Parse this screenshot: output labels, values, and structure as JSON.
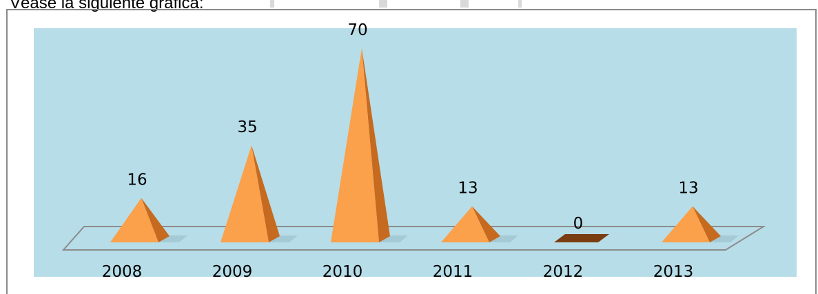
{
  "intro_text": "Véase la siguiente gráfica:",
  "colors": {
    "plot_background": "#b7dde8",
    "pyramid_light": "#fba04b",
    "pyramid_dark": "#c56a1f",
    "zero_marker": "#7a3d12",
    "floor_stroke": "#8c8c8c"
  },
  "chart_data": {
    "type": "bar",
    "style": "3d-pyramid",
    "categories": [
      "2008",
      "2009",
      "2010",
      "2011",
      "2012",
      "2013"
    ],
    "values": [
      16,
      35,
      70,
      13,
      0,
      13
    ],
    "data_labels": [
      "16",
      "35",
      "70",
      "13",
      "0",
      "13"
    ],
    "title": "",
    "xlabel": "",
    "ylabel": "",
    "ylim": [
      0,
      70
    ],
    "grid": false,
    "legend": "none"
  }
}
